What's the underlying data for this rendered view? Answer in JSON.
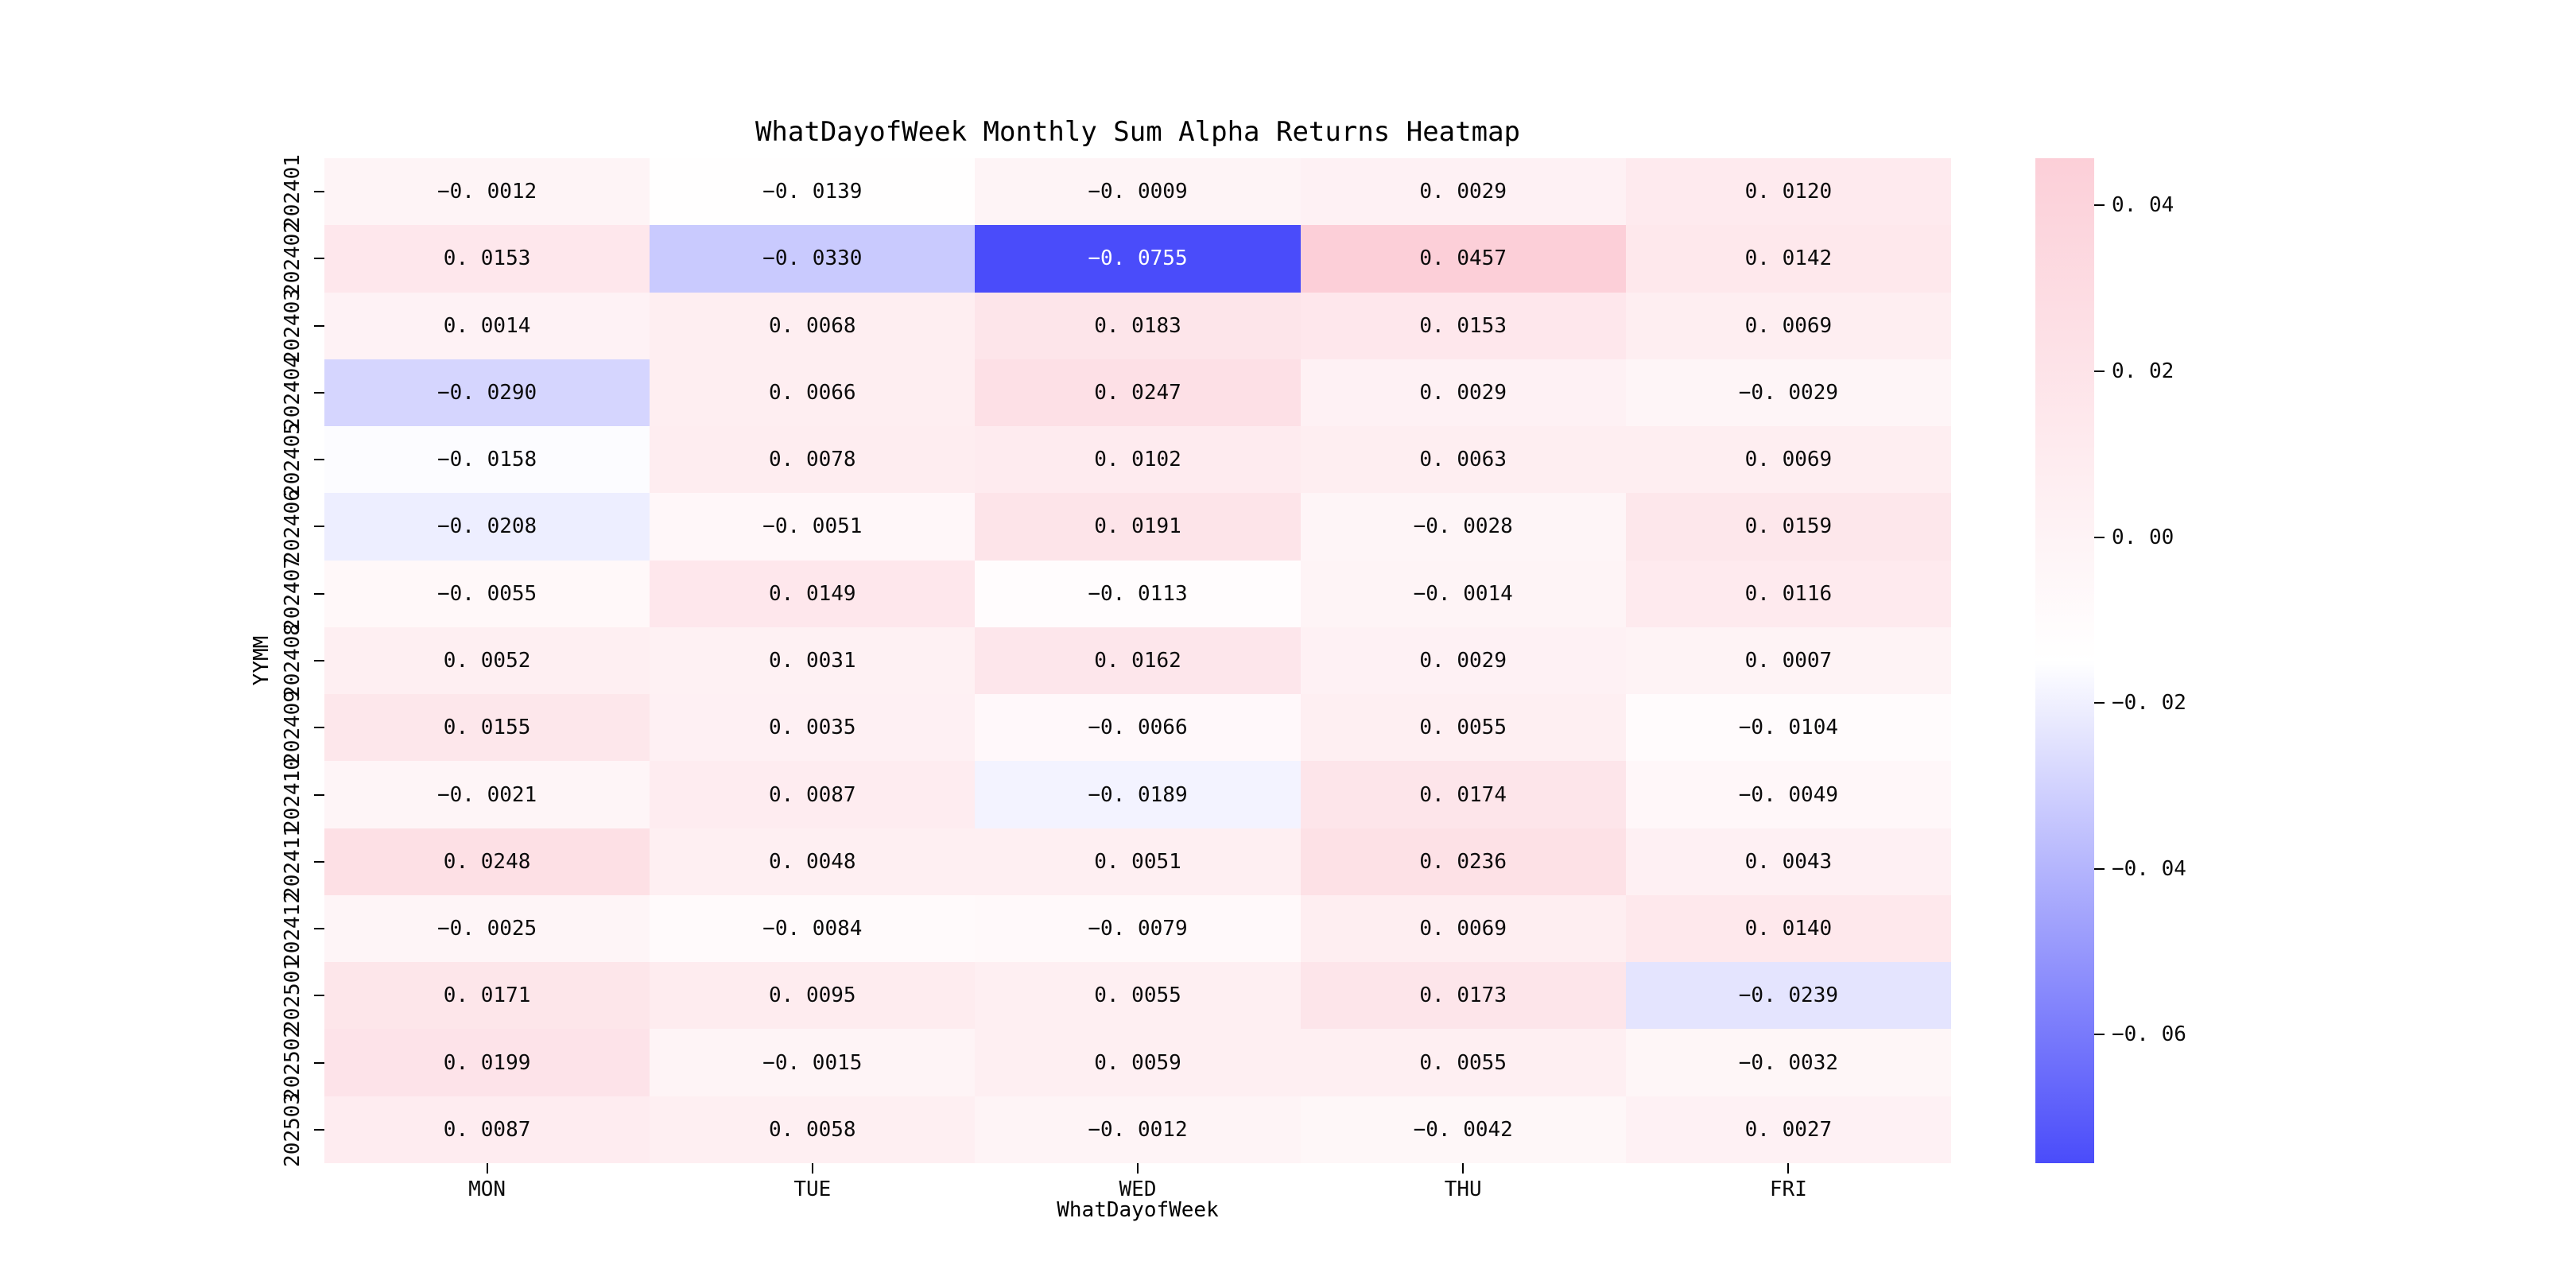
{
  "chart_data": {
    "type": "heatmap",
    "title": "WhatDayofWeek Monthly Sum Alpha Returns Heatmap",
    "xlabel": "WhatDayofWeek",
    "ylabel": "YYMM",
    "columns": [
      "MON",
      "TUE",
      "WED",
      "THU",
      "FRI"
    ],
    "rows": [
      "202401",
      "202402",
      "202403",
      "202404",
      "202405",
      "202406",
      "202407",
      "202408",
      "202409",
      "202410",
      "202411",
      "202412",
      "202501",
      "202502",
      "202503"
    ],
    "values": [
      [
        -0.0012,
        -0.0139,
        -0.0009,
        0.0029,
        0.012
      ],
      [
        0.0153,
        -0.033,
        -0.0755,
        0.0457,
        0.0142
      ],
      [
        0.0014,
        0.0068,
        0.0183,
        0.0153,
        0.0069
      ],
      [
        -0.029,
        0.0066,
        0.0247,
        0.0029,
        -0.0029
      ],
      [
        -0.0158,
        0.0078,
        0.0102,
        0.0063,
        0.0069
      ],
      [
        -0.0208,
        -0.0051,
        0.0191,
        -0.0028,
        0.0159
      ],
      [
        -0.0055,
        0.0149,
        -0.0113,
        -0.0014,
        0.0116
      ],
      [
        0.0052,
        0.0031,
        0.0162,
        0.0029,
        0.0007
      ],
      [
        0.0155,
        0.0035,
        -0.0066,
        0.0055,
        -0.0104
      ],
      [
        -0.0021,
        0.0087,
        -0.0189,
        0.0174,
        -0.0049
      ],
      [
        0.0248,
        0.0048,
        0.0051,
        0.0236,
        0.0043
      ],
      [
        -0.0025,
        -0.0084,
        -0.0079,
        0.0069,
        0.014
      ],
      [
        0.0171,
        0.0095,
        0.0055,
        0.0173,
        -0.0239
      ],
      [
        0.0199,
        -0.0015,
        0.0059,
        0.0055,
        -0.0032
      ],
      [
        0.0087,
        0.0058,
        -0.0012,
        -0.0042,
        0.0027
      ]
    ],
    "value_decimals": 4,
    "vmin": -0.0755,
    "vmax": 0.0457,
    "colormap": {
      "low": "#4a4cfa",
      "mid": "#ffffff",
      "high": "#fccfd8",
      "center_norm": 0.5
    },
    "annotation_dark_text": "#0a0a0a",
    "annotation_light_text": "#ffffff",
    "background": "#ffffff",
    "colorbar": {
      "position": "right",
      "ticks": [
        0.04,
        0.02,
        0.0,
        -0.02,
        -0.04,
        -0.06
      ],
      "tick_decimals": 2
    },
    "grid": "off",
    "xlim_categories": 5,
    "ylim_categories": 15
  }
}
